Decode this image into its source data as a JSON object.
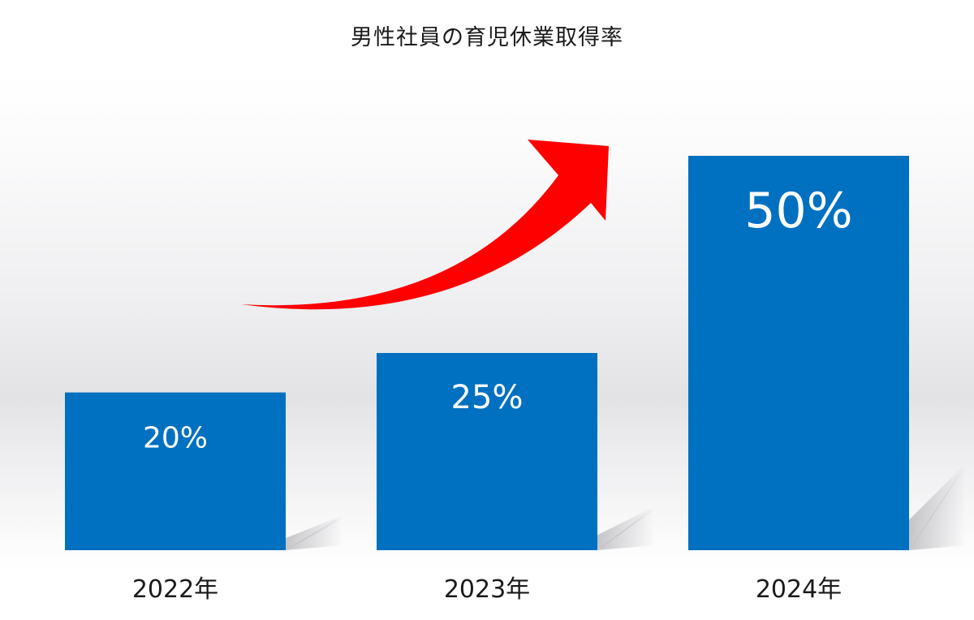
{
  "chart_data": {
    "type": "bar",
    "title": "男性社員の育児休業取得率",
    "categories": [
      "2022年",
      "2023年",
      "2024年"
    ],
    "values": [
      20,
      25,
      50
    ],
    "value_labels": [
      "20%",
      "25%",
      "50%"
    ],
    "unit": "%",
    "ylim": [
      0,
      50
    ],
    "grid": false,
    "legend": "none",
    "annotations": [
      {
        "type": "arrow",
        "direction": "upward trend",
        "color": "#ff0000"
      }
    ],
    "colors": {
      "bar": "#0070c0",
      "arrow": "#ff0000",
      "label_on_bar": "#ffffff"
    }
  }
}
